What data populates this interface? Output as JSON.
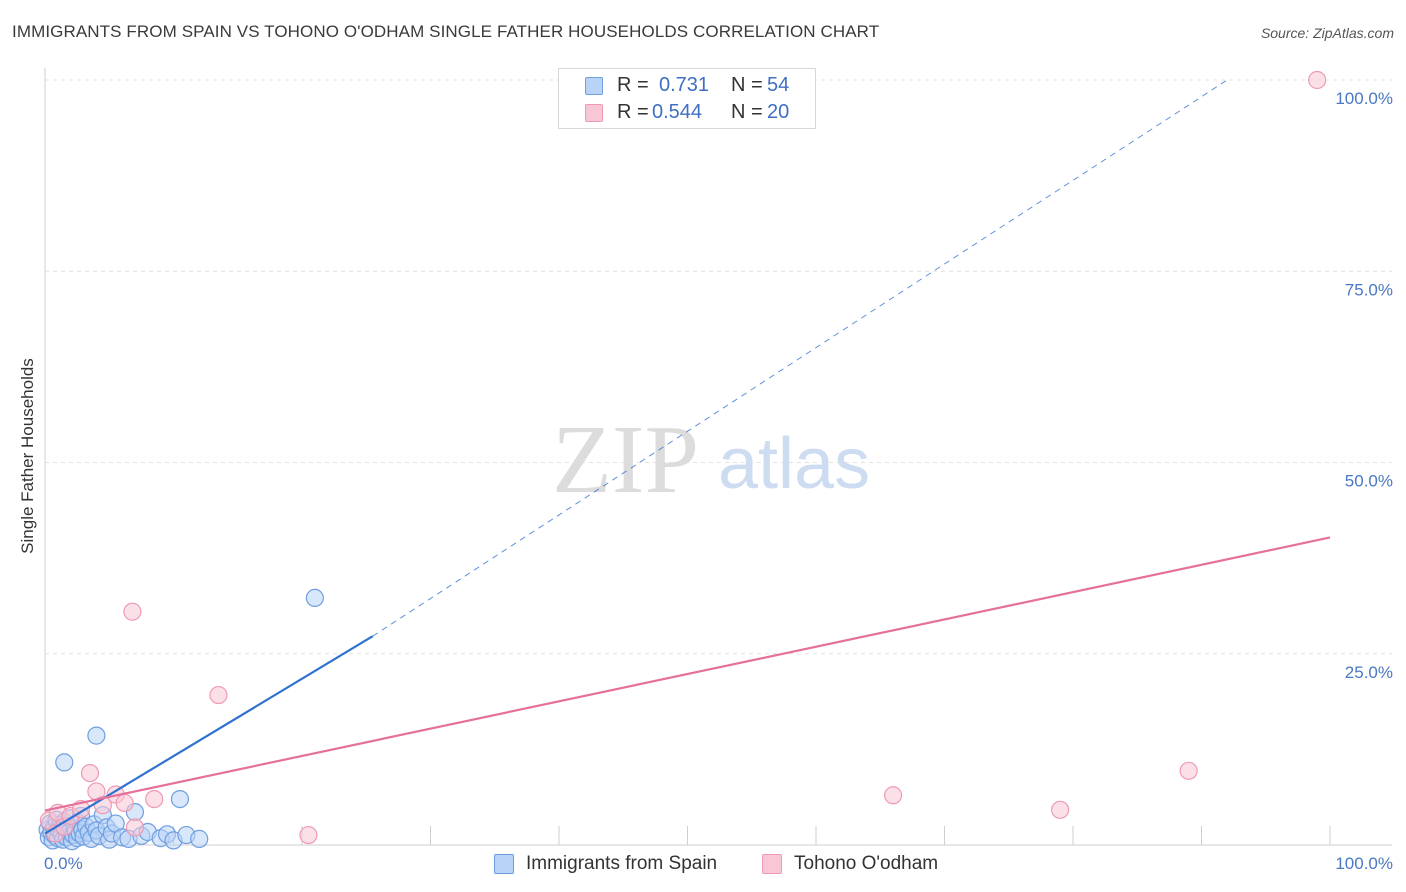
{
  "title": "IMMIGRANTS FROM SPAIN VS TOHONO O'ODHAM SINGLE FATHER HOUSEHOLDS CORRELATION CHART",
  "source": "Source: ZipAtlas.com",
  "watermark": {
    "zip": "ZIP",
    "atlas": "atlas"
  },
  "colors": {
    "blue_fill": "#b9d3f7",
    "blue_stroke": "#6f9fe0",
    "blue_line": "#2f72d0",
    "pink_fill": "#f9c6d5",
    "pink_stroke": "#ee9ab5",
    "pink_line": "#e5709a",
    "grid": "#e2e2e2",
    "tick_text": "#4a78c2"
  },
  "legend_top": [
    {
      "r_label": "R =",
      "r_value": "0.731",
      "n_label": "N =",
      "n_value": "54"
    },
    {
      "r_label": "R =",
      "r_value": "0.544",
      "n_label": "N =",
      "n_value": "20"
    }
  ],
  "legend_bottom": [
    "Immigrants from Spain",
    "Tohono O'odham"
  ],
  "chart_data": {
    "type": "scatter",
    "ylabel": "Single Father Households",
    "xlim": [
      0,
      100
    ],
    "ylim": [
      0,
      100
    ],
    "x_ticks": [
      {
        "value": 0,
        "label": "0.0%"
      },
      {
        "value": 100,
        "label": "100.0%"
      }
    ],
    "y_ticks": [
      {
        "value": 25,
        "label": "25.0%"
      },
      {
        "value": 50,
        "label": "50.0%"
      },
      {
        "value": 75,
        "label": "75.0%"
      },
      {
        "value": 100,
        "label": "100.0%"
      }
    ],
    "grid": true,
    "legend_placement": "top-center",
    "series": [
      {
        "name": "Immigrants from Spain",
        "color": "blue",
        "r": 0.731,
        "n": 54,
        "trend": {
          "solid": [
            [
              0,
              1.5
            ],
            [
              25.5,
              27.3
            ]
          ],
          "dashed": [
            [
              25.5,
              27.3
            ],
            [
              92,
              100
            ]
          ]
        },
        "points": [
          [
            0.2,
            2.0
          ],
          [
            0.3,
            1.0
          ],
          [
            0.4,
            2.8
          ],
          [
            0.5,
            1.6
          ],
          [
            0.6,
            0.6
          ],
          [
            0.7,
            2.3
          ],
          [
            0.8,
            1.2
          ],
          [
            0.9,
            3.3
          ],
          [
            1.0,
            0.9
          ],
          [
            1.1,
            1.9
          ],
          [
            1.2,
            2.6
          ],
          [
            1.3,
            1.4
          ],
          [
            1.4,
            0.7
          ],
          [
            1.5,
            3.0
          ],
          [
            1.6,
            2.1
          ],
          [
            1.7,
            1.0
          ],
          [
            1.8,
            2.5
          ],
          [
            1.9,
            1.7
          ],
          [
            2.0,
            3.5
          ],
          [
            2.1,
            0.5
          ],
          [
            2.2,
            1.3
          ],
          [
            2.3,
            2.2
          ],
          [
            2.4,
            1.8
          ],
          [
            2.5,
            0.9
          ],
          [
            2.6,
            2.9
          ],
          [
            2.7,
            1.5
          ],
          [
            2.8,
            3.8
          ],
          [
            2.9,
            2.0
          ],
          [
            3.0,
            1.1
          ],
          [
            3.2,
            2.4
          ],
          [
            3.4,
            1.6
          ],
          [
            3.6,
            0.8
          ],
          [
            3.8,
            2.7
          ],
          [
            4.0,
            1.9
          ],
          [
            4.2,
            1.2
          ],
          [
            4.5,
            3.9
          ],
          [
            4.8,
            2.3
          ],
          [
            5.0,
            0.7
          ],
          [
            5.2,
            1.5
          ],
          [
            5.5,
            2.8
          ],
          [
            6.0,
            1.0
          ],
          [
            6.5,
            0.8
          ],
          [
            7.0,
            4.3
          ],
          [
            7.5,
            1.2
          ],
          [
            8.0,
            1.7
          ],
          [
            9.0,
            0.9
          ],
          [
            9.5,
            1.4
          ],
          [
            10.0,
            0.6
          ],
          [
            10.5,
            6.0
          ],
          [
            11.0,
            1.3
          ],
          [
            12.0,
            0.8
          ],
          [
            1.5,
            10.8
          ],
          [
            4.0,
            14.3
          ],
          [
            21.0,
            32.3
          ]
        ]
      },
      {
        "name": "Tohono O'odham",
        "color": "pink",
        "r": 0.544,
        "n": 20,
        "trend": {
          "solid": [
            [
              0,
              4.5
            ],
            [
              100,
              40.2
            ]
          ]
        },
        "points": [
          [
            0.3,
            3.2
          ],
          [
            0.8,
            1.5
          ],
          [
            1.0,
            4.2
          ],
          [
            1.5,
            2.4
          ],
          [
            2.0,
            3.8
          ],
          [
            2.8,
            4.7
          ],
          [
            3.5,
            9.4
          ],
          [
            4.0,
            7.0
          ],
          [
            4.5,
            5.2
          ],
          [
            5.5,
            6.6
          ],
          [
            6.2,
            5.5
          ],
          [
            6.8,
            30.5
          ],
          [
            7.0,
            2.3
          ],
          [
            8.5,
            6.0
          ],
          [
            13.5,
            19.6
          ],
          [
            20.5,
            1.3
          ],
          [
            66.0,
            6.5
          ],
          [
            79.0,
            4.6
          ],
          [
            89.0,
            9.7
          ],
          [
            99.0,
            100.0
          ]
        ]
      }
    ]
  }
}
